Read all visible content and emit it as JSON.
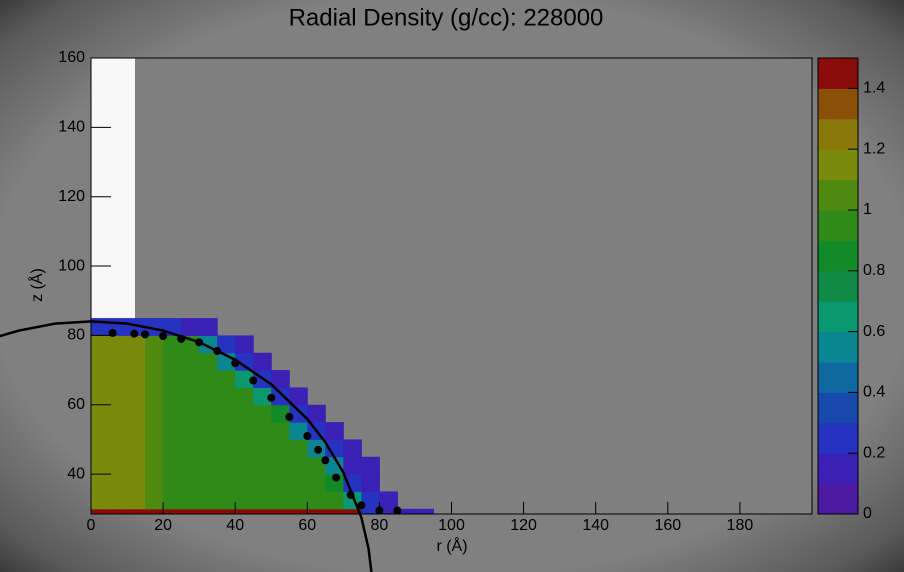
{
  "chart_data": {
    "type": "heatmap",
    "title": "Radial Density (g/cc):  228000",
    "x_label": "r (Å)",
    "y_label": "z (Å)",
    "xlim": [
      0,
      200
    ],
    "ylim": [
      28.5,
      160
    ],
    "xticks": [
      0,
      20,
      40,
      60,
      80,
      100,
      120,
      140,
      160,
      180
    ],
    "yticks": [
      40,
      60,
      80,
      100,
      120,
      140,
      160
    ],
    "zlim": [
      0,
      1.5
    ],
    "zticks": [
      0,
      0.2,
      0.4,
      0.6,
      0.8,
      1,
      1.2,
      1.4
    ],
    "palette": [
      "#4b1aa0",
      "#3a20b4",
      "#2632c0",
      "#1748ac",
      "#0f68a0",
      "#0a8690",
      "#0a9870",
      "#108a44",
      "#128a28",
      "#2f8a18",
      "#4e8a10",
      "#7a8a0c",
      "#8a780a",
      "#8a5008",
      "#8a0c0a"
    ],
    "x_edges": [
      0,
      5,
      10,
      15,
      20,
      25,
      30,
      35,
      40,
      45,
      50,
      55,
      60,
      65,
      70,
      75,
      80,
      85,
      90,
      95
    ],
    "y_edges": [
      28.5,
      30,
      35,
      40,
      45,
      50,
      55,
      60,
      65,
      70,
      75,
      80,
      85
    ],
    "density": [
      [
        1.45,
        1.45,
        1.45,
        1.45,
        1.45,
        1.45,
        1.45,
        1.45,
        1.45,
        1.45,
        1.45,
        1.45,
        1.45,
        1.45,
        1.45,
        0.3,
        0.1,
        0.1,
        0.1
      ],
      [
        1.15,
        1.15,
        1.15,
        1.0,
        0.95,
        0.95,
        0.95,
        0.95,
        0.95,
        0.95,
        0.95,
        0.95,
        0.95,
        0.95,
        0.7,
        0.3,
        0.1,
        null,
        null
      ],
      [
        1.15,
        1.15,
        1.1,
        1.0,
        0.95,
        0.95,
        0.95,
        0.95,
        0.95,
        0.95,
        0.95,
        0.95,
        0.95,
        0.8,
        0.3,
        0.1,
        null,
        null,
        null
      ],
      [
        1.15,
        1.15,
        1.1,
        1.0,
        0.95,
        0.95,
        0.95,
        0.95,
        0.95,
        0.95,
        0.95,
        0.95,
        0.9,
        0.5,
        0.1,
        0.1,
        null,
        null,
        null
      ],
      [
        1.15,
        1.15,
        1.1,
        1.0,
        0.95,
        0.95,
        0.95,
        0.95,
        0.95,
        0.95,
        0.95,
        0.95,
        0.5,
        0.2,
        0.1,
        null,
        null,
        null,
        null
      ],
      [
        1.15,
        1.15,
        1.1,
        1.0,
        0.95,
        0.95,
        0.95,
        0.95,
        0.95,
        0.95,
        0.95,
        0.6,
        0.2,
        0.1,
        null,
        null,
        null,
        null,
        null
      ],
      [
        1.15,
        1.15,
        1.1,
        1.0,
        0.95,
        0.95,
        0.95,
        0.95,
        0.95,
        0.95,
        0.8,
        0.2,
        0.1,
        null,
        null,
        null,
        null,
        null,
        null
      ],
      [
        1.15,
        1.15,
        1.1,
        1.0,
        0.95,
        0.95,
        0.95,
        0.95,
        0.95,
        0.7,
        0.2,
        0.1,
        null,
        null,
        null,
        null,
        null,
        null,
        null
      ],
      [
        1.15,
        1.15,
        1.1,
        1.0,
        0.95,
        0.95,
        0.95,
        0.95,
        0.7,
        0.2,
        0.1,
        null,
        null,
        null,
        null,
        null,
        null,
        null,
        null
      ],
      [
        1.15,
        1.15,
        1.1,
        1.0,
        0.95,
        0.95,
        0.95,
        0.6,
        0.2,
        0.1,
        null,
        null,
        null,
        null,
        null,
        null,
        null,
        null,
        null
      ],
      [
        1.15,
        1.15,
        1.1,
        1.0,
        0.95,
        0.9,
        0.5,
        0.2,
        0.1,
        null,
        null,
        null,
        null,
        null,
        null,
        null,
        null,
        null,
        null
      ],
      [
        0.3,
        0.3,
        0.3,
        0.3,
        0.3,
        0.1,
        0.1,
        null,
        null,
        null,
        null,
        null,
        null,
        null,
        null,
        null,
        null,
        null,
        null
      ]
    ],
    "points": {
      "x": [
        6,
        12,
        15,
        20,
        25,
        30,
        35,
        40,
        45,
        50,
        55,
        60,
        63,
        65,
        68,
        72,
        75,
        80,
        85
      ],
      "y": [
        80.7,
        80.5,
        80.3,
        79.8,
        79,
        78,
        75.5,
        72,
        67,
        62,
        56.5,
        51,
        47,
        44,
        39,
        34,
        31,
        29.5,
        29.5
      ]
    },
    "fit": {
      "x": [
        -26,
        -20,
        -10,
        0,
        10,
        20,
        30,
        40,
        50,
        60,
        65,
        70,
        75,
        77,
        77.8
      ],
      "y": [
        79.6,
        81.4,
        83.4,
        84.05,
        83.4,
        81.4,
        78.05,
        73,
        65.9,
        55.9,
        49.2,
        40.5,
        27.5,
        18.5,
        11.6
      ]
    }
  }
}
